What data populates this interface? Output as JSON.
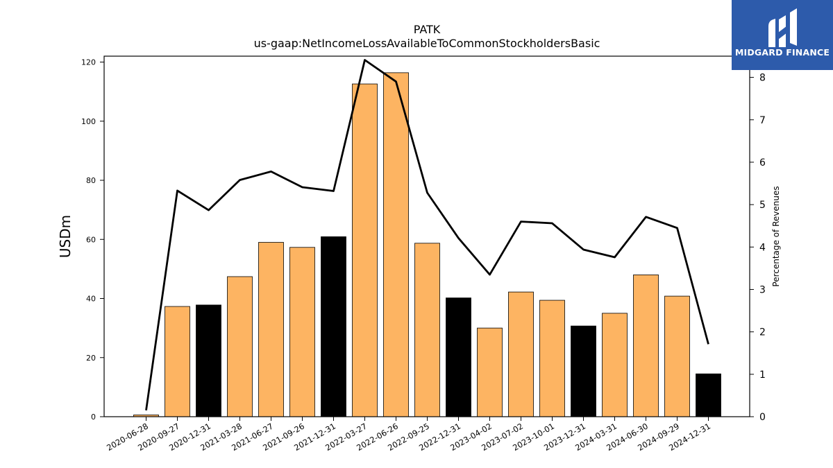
{
  "chart_data": {
    "type": "bar",
    "title": "PATK",
    "subtitle": "us-gaap:NetIncomeLossAvailableToCommonStockholdersBasic",
    "ylabel": "USDm",
    "y2label": "Percentage of Revenues",
    "ylim": [
      0,
      122
    ],
    "y2lim": [
      0,
      8.5
    ],
    "yticks": [
      0,
      20,
      40,
      60,
      80,
      100,
      120
    ],
    "y2ticks": [
      0,
      1,
      2,
      3,
      4,
      5,
      6,
      7,
      8
    ],
    "categories": [
      "2020-06-28",
      "2020-09-27",
      "2020-12-31",
      "2021-03-28",
      "2021-06-27",
      "2021-09-26",
      "2021-12-31",
      "2022-03-27",
      "2022-06-26",
      "2022-09-25",
      "2022-12-31",
      "2023-04-02",
      "2023-07-02",
      "2023-10-01",
      "2023-12-31",
      "2024-03-31",
      "2024-06-30",
      "2024-09-29",
      "2024-12-31"
    ],
    "series": [
      {
        "type": "bar",
        "axis": "left",
        "values": [
          0.6,
          37.3,
          37.8,
          47.4,
          59.0,
          57.3,
          60.9,
          112.6,
          116.4,
          58.7,
          40.2,
          30.0,
          42.2,
          39.4,
          30.7,
          35.0,
          48.0,
          40.8,
          14.5
        ],
        "colors": [
          "#fdb462",
          "#fdb462",
          "#000000",
          "#fdb462",
          "#fdb462",
          "#fdb462",
          "#000000",
          "#fdb462",
          "#fdb462",
          "#fdb462",
          "#000000",
          "#fdb462",
          "#fdb462",
          "#fdb462",
          "#000000",
          "#fdb462",
          "#fdb462",
          "#fdb462",
          "#000000"
        ]
      },
      {
        "type": "line",
        "axis": "right",
        "color": "#000000",
        "values": [
          0.15,
          5.33,
          4.87,
          5.58,
          5.78,
          5.41,
          5.32,
          8.41,
          7.9,
          5.28,
          4.21,
          3.35,
          4.6,
          4.56,
          3.94,
          3.76,
          4.71,
          4.45,
          1.71
        ]
      }
    ]
  },
  "logo": {
    "text": "MIDGARD FINANCE"
  }
}
